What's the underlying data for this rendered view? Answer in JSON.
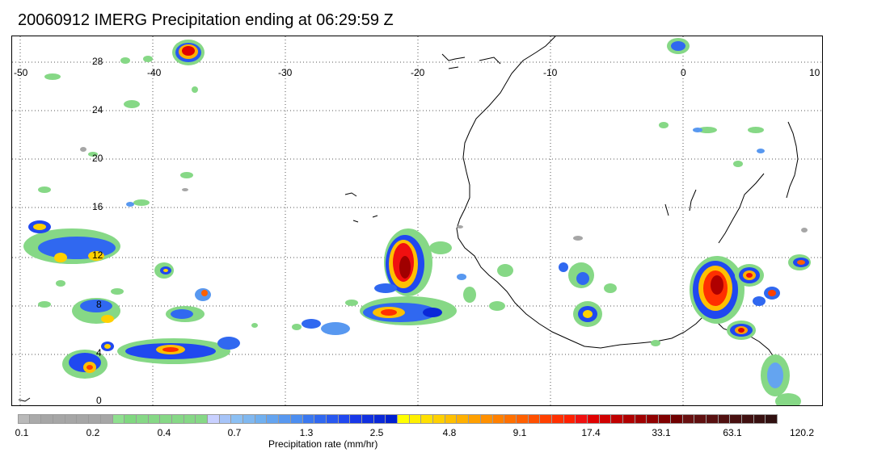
{
  "title": "20060912 IMERG Precipitation ending at 06:29:59 Z",
  "map": {
    "lon_labels": [
      "-50",
      "-40",
      "-30",
      "-20",
      "-10",
      "0",
      "10"
    ],
    "lat_labels": [
      "28",
      "24",
      "20",
      "16",
      "12",
      "8",
      "4",
      "0"
    ],
    "gridlines": "dotted"
  },
  "colorbar": {
    "title": "Precipitation rate (mm/hr)",
    "labels": [
      "0.1",
      "0.2",
      "0.4",
      "0.7",
      "1.3",
      "2.5",
      "4.8",
      "9.1",
      "17.4",
      "33.1",
      "63.1",
      "120.2"
    ],
    "colors": [
      "#b9b9b9",
      "#aaaaaa",
      "#a6a6a6",
      "#a6a6a6",
      "#a6a6a6",
      "#a6a6a6",
      "#a6a6a6",
      "#a6a6a6",
      "#8fe08f",
      "#80d880",
      "#86d886",
      "#86d886",
      "#86d886",
      "#86d886",
      "#86d886",
      "#86d886",
      "#c8d0ff",
      "#a6c4f8",
      "#8cc0f4",
      "#80b8f0",
      "#70b0f0",
      "#64a4f0",
      "#5898f0",
      "#4c8ef0",
      "#3a78f0",
      "#3068f0",
      "#2858f0",
      "#2048f0",
      "#1838e8",
      "#1030e0",
      "#0a28d8",
      "#0020d0",
      "#ffff00",
      "#fff000",
      "#ffe000",
      "#ffd000",
      "#ffc000",
      "#ffb000",
      "#ffa000",
      "#ff9000",
      "#ff8000",
      "#ff7000",
      "#ff6000",
      "#ff5000",
      "#ff4000",
      "#ff3000",
      "#ff2000",
      "#f01010",
      "#e00000",
      "#d00000",
      "#c00000",
      "#b00000",
      "#a00000",
      "#900000",
      "#800000",
      "#700000",
      "#681010",
      "#601010",
      "#581010",
      "#501010",
      "#481010",
      "#401010",
      "#381010",
      "#301010"
    ]
  }
}
